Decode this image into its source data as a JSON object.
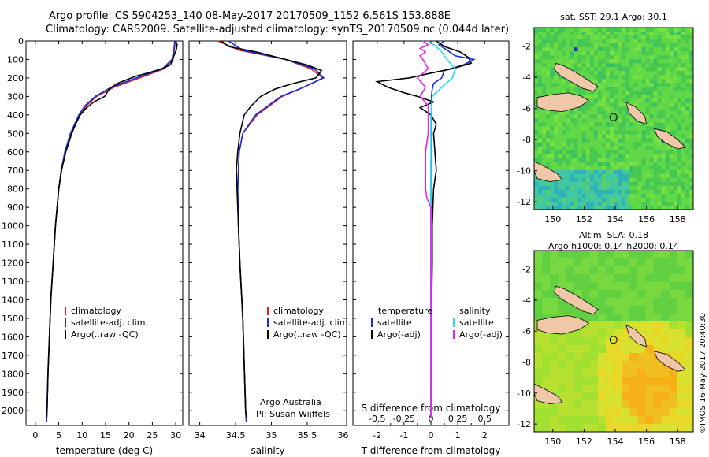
{
  "header": {
    "line1": "Argo profile: CS 5904253_140 08-May-2017 20170509_1152 6.561S 153.888E",
    "line2": "Climatology: CARS2009. Satellite-adjusted climatology: synTS_20170509.nc (0.044d later)"
  },
  "colors": {
    "climatology": "#e02020",
    "satellite": "#1030e0",
    "argo": "#000000",
    "satellite_s": "#20e0e8",
    "argo_s": "#f020f0",
    "land": "#f0c8a8"
  },
  "chart_data": [
    {
      "type": "line",
      "xlabel": "temperature (deg C)",
      "xticks": [
        0,
        5,
        10,
        15,
        20,
        25,
        30
      ],
      "xlim": [
        -2,
        31.5
      ],
      "ylim": [
        2080,
        0
      ],
      "yticks": [
        0,
        100,
        200,
        300,
        400,
        500,
        600,
        700,
        800,
        900,
        1000,
        1100,
        1200,
        1300,
        1400,
        1500,
        1600,
        1700,
        1800,
        1900,
        2000
      ],
      "legend": [
        "climatology",
        "satellite-adj. clim.",
        "Argo(..raw -QC)"
      ],
      "series": [
        {
          "name": "climatology",
          "color": "#e02020",
          "pressure": [
            0,
            50,
            100,
            150,
            200,
            250,
            300,
            350,
            400,
            500,
            600,
            700,
            800,
            1000,
            1200,
            1400,
            1600,
            1800,
            2000,
            2060
          ],
          "values": [
            29.9,
            29.7,
            29.3,
            27.6,
            22.3,
            16.8,
            13.1,
            10.9,
            9.5,
            7.6,
            6.4,
            5.6,
            5.0,
            4.3,
            3.8,
            3.3,
            3.0,
            2.7,
            2.5,
            2.4
          ]
        },
        {
          "name": "satellite-adj. clim.",
          "color": "#1030e0",
          "pressure": [
            0,
            50,
            100,
            150,
            200,
            250,
            300,
            350,
            400,
            500,
            600,
            700,
            800,
            1000,
            1200,
            1400,
            1600,
            1800,
            2000,
            2060
          ],
          "values": [
            29.8,
            29.6,
            29.2,
            27.2,
            21.6,
            16.2,
            12.8,
            10.6,
            9.3,
            7.5,
            6.3,
            5.5,
            5.0,
            4.3,
            3.8,
            3.3,
            3.0,
            2.7,
            2.5,
            2.4
          ]
        },
        {
          "name": "Argo(..raw -QC)",
          "color": "#000000",
          "pressure": [
            0,
            20,
            50,
            80,
            100,
            130,
            150,
            170,
            190,
            210,
            230,
            260,
            300,
            330,
            360,
            400,
            450,
            500,
            600,
            700,
            800,
            1000,
            1200,
            1400,
            1600,
            1800,
            2000,
            2040
          ],
          "values": [
            30.0,
            30.3,
            30.1,
            29.6,
            29.4,
            28.8,
            27.0,
            24.5,
            21.5,
            19.5,
            17.5,
            15.8,
            14.8,
            12.5,
            11.0,
            9.6,
            8.6,
            7.8,
            6.5,
            5.6,
            5.0,
            4.3,
            3.8,
            3.3,
            3.0,
            2.7,
            2.5,
            2.4
          ]
        }
      ]
    },
    {
      "type": "line",
      "xlabel": "salinity",
      "xticks": [
        34,
        34.5,
        35,
        35.5,
        36
      ],
      "xlim": [
        33.85,
        36.05
      ],
      "ylim": [
        2080,
        0
      ],
      "legend": [
        "climatology",
        "satellite-adj. clim.",
        "Argo(..raw -QC)"
      ],
      "annotation": [
        "Argo Australia",
        "PI: Susan Wijffels"
      ],
      "series": [
        {
          "name": "climatology",
          "color": "#e02020",
          "pressure": [
            0,
            50,
            100,
            150,
            200,
            250,
            300,
            400,
            500,
            600,
            800,
            1000,
            1200,
            1500,
            2000,
            2060
          ],
          "values": [
            34.25,
            34.55,
            35.2,
            35.55,
            35.72,
            35.45,
            35.15,
            34.8,
            34.6,
            34.55,
            34.53,
            34.54,
            34.56,
            34.6,
            34.64,
            34.65
          ]
        },
        {
          "name": "satellite-adj. clim.",
          "color": "#1030e0",
          "pressure": [
            0,
            50,
            100,
            150,
            200,
            250,
            300,
            400,
            500,
            600,
            800,
            1000,
            1200,
            1500,
            2000,
            2060
          ],
          "values": [
            34.4,
            34.6,
            35.2,
            35.6,
            35.73,
            35.45,
            35.13,
            34.78,
            34.6,
            34.55,
            34.53,
            34.54,
            34.56,
            34.6,
            34.64,
            34.65
          ]
        },
        {
          "name": "Argo(..raw -QC)",
          "color": "#000000",
          "pressure": [
            0,
            30,
            60,
            100,
            130,
            160,
            200,
            230,
            260,
            300,
            350,
            400,
            500,
            600,
            700,
            800,
            900,
            1000,
            1200,
            1500,
            2000,
            2040
          ],
          "values": [
            34.3,
            34.4,
            34.8,
            35.2,
            35.5,
            35.7,
            35.62,
            35.3,
            35.05,
            34.85,
            34.72,
            34.62,
            34.56,
            34.53,
            34.51,
            34.52,
            34.53,
            34.54,
            34.56,
            34.6,
            34.64,
            34.65
          ]
        }
      ]
    },
    {
      "type": "line",
      "xlabel_bottom": "T difference from climatology",
      "xlabel_top": "S difference from climatology",
      "xticks_t": [
        -2,
        -1,
        0,
        1,
        2
      ],
      "xticks_s_labels": [
        "-0.5",
        "-0.25",
        "0",
        "0.25",
        "0.5"
      ],
      "xticks_s": [
        -2,
        -1,
        0,
        1,
        2
      ],
      "xlim": [
        -2.9,
        2.9
      ],
      "ylim": [
        2080,
        0
      ],
      "legend_left_title": "temperature",
      "legend_right_title": "salinity",
      "legend": [
        "satellite",
        "Argo(-adj)",
        "satellite",
        "Argo(-adj)"
      ],
      "series": [
        {
          "name": "satellite",
          "color": "#1030e0",
          "pressure": [
            0,
            20,
            50,
            80,
            100,
            130,
            160,
            200,
            230,
            260,
            300,
            400,
            600,
            800,
            1000,
            1500,
            2000,
            2040
          ],
          "values": [
            0.5,
            0.3,
            0.6,
            0.9,
            1.6,
            1.2,
            0.5,
            0.4,
            0.1,
            0.05,
            0.02,
            0.02,
            0.01,
            0.0,
            0.0,
            0.0,
            0.0,
            0.0
          ]
        },
        {
          "name": "Argo(-adj)",
          "color": "#000000",
          "pressure": [
            0,
            30,
            60,
            90,
            120,
            150,
            180,
            200,
            220,
            250,
            280,
            300,
            330,
            360,
            400,
            450,
            500,
            600,
            700,
            800,
            1000,
            1200,
            1500,
            1800,
            2000,
            2040
          ],
          "values": [
            0.2,
            0.5,
            1.1,
            1.4,
            1.5,
            0.8,
            -0.2,
            -0.8,
            -2.0,
            -1.6,
            -1.0,
            -0.5,
            0.1,
            -0.4,
            0.0,
            0.2,
            0.1,
            0.15,
            0.2,
            0.1,
            0.05,
            0.05,
            0.02,
            0.01,
            0.0,
            0.0
          ]
        },
        {
          "name": "satellite",
          "color": "#20e0e8",
          "pressure": [
            0,
            30,
            60,
            100,
            150,
            200,
            250,
            300,
            400,
            600,
            1000,
            1500,
            2000,
            2040
          ],
          "values": [
            -0.1,
            0.2,
            0.4,
            0.6,
            0.9,
            0.8,
            0.4,
            0.05,
            0.0,
            0.0,
            0.0,
            0.0,
            0.0,
            0.0
          ]
        },
        {
          "name": "Argo(-adj)",
          "color": "#f020f0",
          "pressure": [
            0,
            20,
            40,
            60,
            80,
            100,
            150,
            200,
            250,
            300,
            350,
            400,
            500,
            600,
            700,
            800,
            850,
            900,
            1000,
            1200,
            1500,
            1800,
            2000,
            2040
          ],
          "values": [
            -0.3,
            -0.1,
            -0.4,
            -0.2,
            -0.4,
            -0.3,
            -0.1,
            -0.5,
            -0.2,
            -0.4,
            -0.1,
            -0.1,
            -0.1,
            -0.2,
            -0.2,
            -0.2,
            -0.15,
            0.0,
            0.0,
            0.0,
            0.0,
            0.0,
            0.0,
            0.0
          ]
        }
      ]
    },
    {
      "type": "heatmap",
      "title": "sat. SST: 29.1  Argo: 30.1",
      "xticks": [
        150,
        152,
        154,
        156,
        158
      ],
      "yticks": [
        -2,
        -4,
        -6,
        -8,
        -10,
        -12
      ],
      "xlim": [
        148.8,
        159.0
      ],
      "ylim": [
        -12.5,
        -0.8
      ],
      "marker": {
        "lon": 153.888,
        "lat": -6.561
      }
    },
    {
      "type": "heatmap",
      "title": "Altim. SLA: 0.18",
      "subtitle": "Argo h1000: 0.14  h2000: 0.14",
      "xticks": [
        150,
        152,
        154,
        156,
        158
      ],
      "yticks": [
        -2,
        -4,
        -6,
        -8,
        -10,
        -12
      ],
      "xlim": [
        148.8,
        159.0
      ],
      "ylim": [
        -12.5,
        -0.8
      ],
      "marker": {
        "lon": 153.888,
        "lat": -6.561
      }
    }
  ],
  "footer": {
    "stamp": "©IMOS 16-May-2017 20:40:30"
  }
}
